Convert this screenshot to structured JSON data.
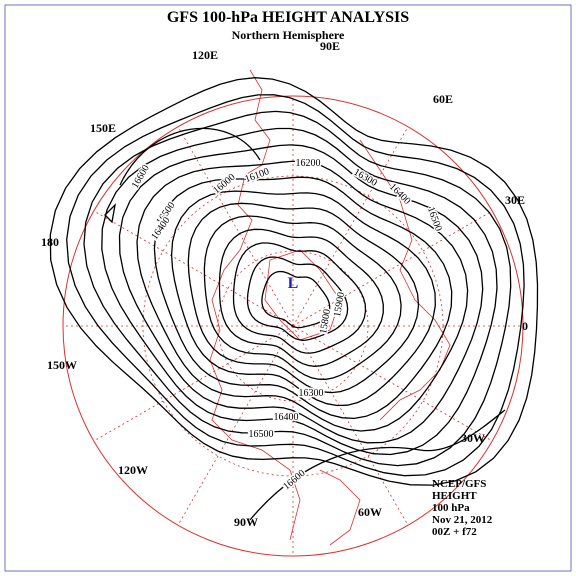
{
  "header": {
    "title": "GFS 100-hPa HEIGHT ANALYSIS",
    "subtitle": "Northern Hemisphere"
  },
  "longitude_labels": [
    "90E",
    "60E",
    "30E",
    "0",
    "30W",
    "60W",
    "90W",
    "120W",
    "150W",
    "180",
    "150E",
    "120E"
  ],
  "contour_labels": [
    16600,
    16500,
    16400,
    16100,
    16000,
    16200,
    16300,
    16400,
    16500,
    15900,
    15800,
    16300,
    16400,
    16500,
    16600
  ],
  "low_marker": "L",
  "info": [
    "NCEP/GFS",
    "HEIGHT",
    "100 hPa",
    "Nov 21, 2012",
    "00Z + f72"
  ]
}
